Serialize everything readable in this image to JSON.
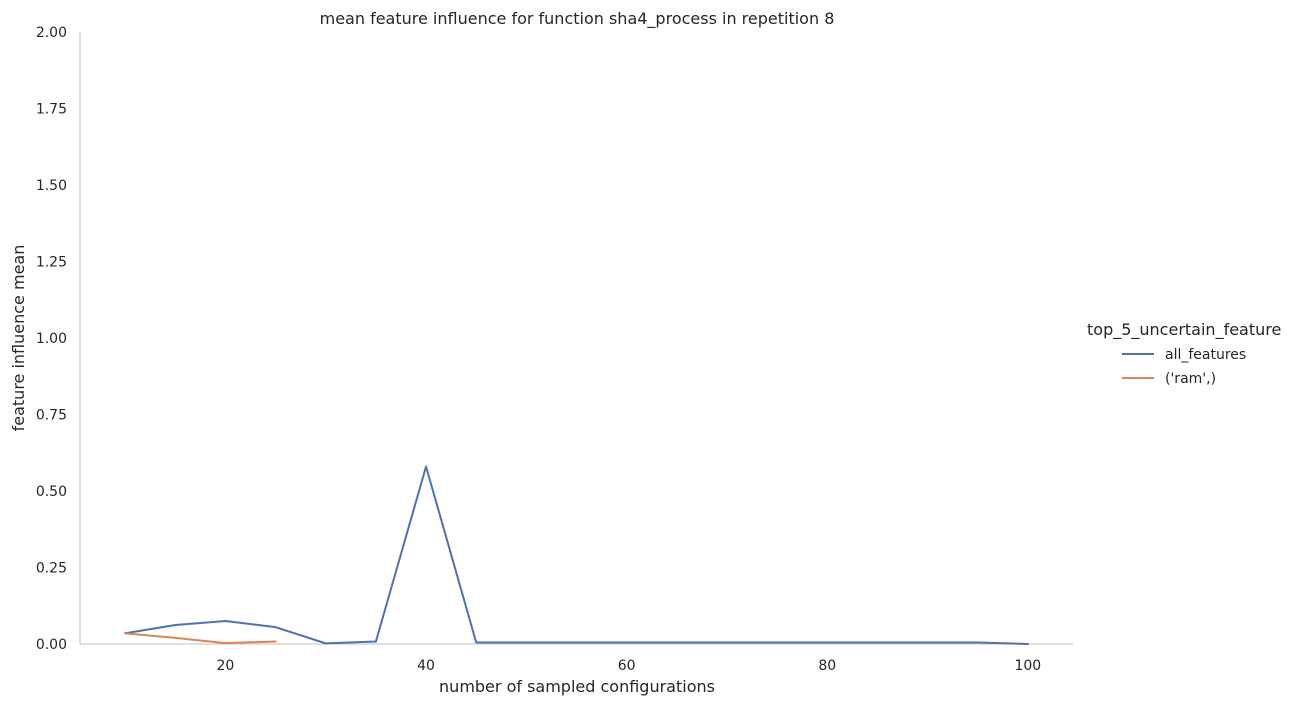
{
  "chart_data": {
    "type": "line",
    "title": "mean feature influence for function sha4_process in repetition 8",
    "xlabel": "number of sampled configurations",
    "ylabel": "feature influence mean",
    "xlim": [
      5.5,
      104.5
    ],
    "ylim": [
      0,
      2.0
    ],
    "xticks": [
      20,
      40,
      60,
      80,
      100
    ],
    "yticks": [
      0.0,
      0.25,
      0.5,
      0.75,
      1.0,
      1.25,
      1.5,
      1.75,
      2.0
    ],
    "ytick_labels": [
      "0.00",
      "0.25",
      "0.50",
      "0.75",
      "1.00",
      "1.25",
      "1.50",
      "1.75",
      "2.00"
    ],
    "grid": false,
    "legend": {
      "title": "top_5_uncertain_feature",
      "placement": "right"
    },
    "series": [
      {
        "name": "all_features",
        "color": "#4c72b0",
        "x": [
          10,
          15,
          20,
          25,
          30,
          35,
          40,
          45,
          50,
          55,
          60,
          65,
          70,
          75,
          80,
          85,
          90,
          95,
          100
        ],
        "y": [
          0.035,
          0.062,
          0.075,
          0.055,
          0.002,
          0.008,
          0.58,
          0.005,
          0.005,
          0.005,
          0.005,
          0.005,
          0.005,
          0.005,
          0.005,
          0.005,
          0.005,
          0.005,
          0.0
        ]
      },
      {
        "name": "('ram',)",
        "color": "#dd8452",
        "x": [
          10,
          15,
          20,
          25
        ],
        "y": [
          0.035,
          0.02,
          0.003,
          0.008
        ]
      }
    ]
  }
}
